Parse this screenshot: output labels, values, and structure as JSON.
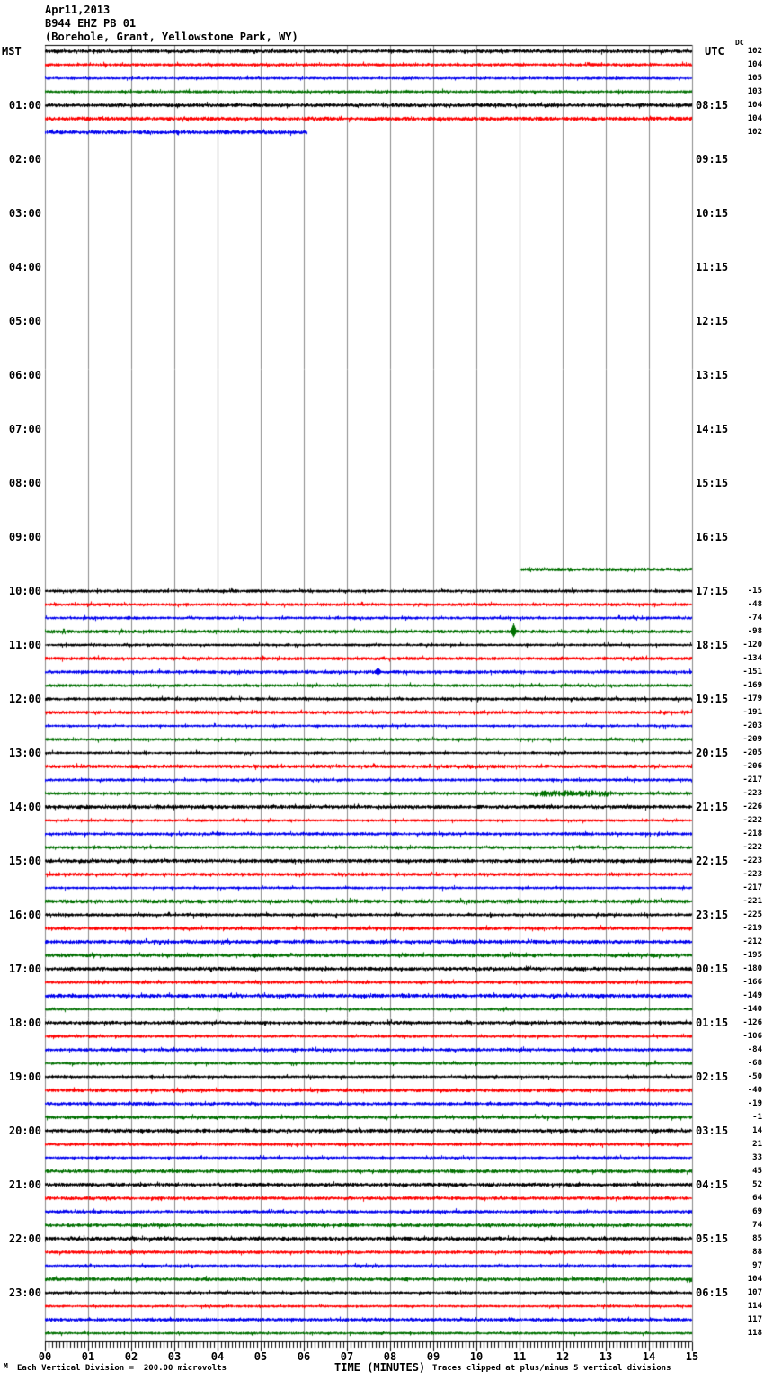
{
  "header": {
    "date": "Apr11,2013",
    "station": "B944 EHZ PB 01",
    "location": "(Borehole, Grant, Yellowstone Park, WY)"
  },
  "axes": {
    "left_label": "MST",
    "right_label": "UTC",
    "dc_header": "DC",
    "left_hours": [
      "01:00",
      "02:00",
      "03:00",
      "04:00",
      "05:00",
      "06:00",
      "07:00",
      "08:00",
      "09:00",
      "10:00",
      "11:00",
      "12:00",
      "13:00",
      "14:00",
      "15:00",
      "16:00",
      "17:00",
      "18:00",
      "19:00",
      "20:00",
      "21:00",
      "22:00",
      "23:00"
    ],
    "right_hours": [
      "08:15",
      "09:15",
      "10:15",
      "11:15",
      "12:15",
      "13:15",
      "14:15",
      "15:15",
      "16:15",
      "17:15",
      "18:15",
      "19:15",
      "20:15",
      "21:15",
      "22:15",
      "23:15",
      "00:15",
      "01:15",
      "02:15",
      "03:15",
      "04:15",
      "05:15",
      "06:15"
    ],
    "x_ticks": [
      "00",
      "01",
      "02",
      "03",
      "04",
      "05",
      "06",
      "07",
      "08",
      "09",
      "10",
      "11",
      "12",
      "13",
      "14",
      "15"
    ],
    "xlabel": "TIME (MINUTES)"
  },
  "footer": {
    "mark": "M",
    "scale_note": "Each Vertical Division =  200.00 microvolts",
    "clip_note": "Traces clipped at plus/minus 5 vertical divisions"
  },
  "chart_data": {
    "type": "line",
    "subtype": "seismogram-helicorder",
    "title": "B944 EHZ PB 01 (Borehole, Grant, Yellowstone Park, WY) Apr11,2013",
    "xlabel": "TIME (MINUTES)",
    "x_range_minutes": [
      0,
      15
    ],
    "minutes_per_row": 15,
    "microvolts_per_division": 200.0,
    "clip_divisions": 5,
    "trace_colors_cycle": [
      "#000000",
      "#ff0000",
      "#0000ee",
      "#007000"
    ],
    "grid_color": "#8a8a8a",
    "rows": [
      {
        "i": 0,
        "t": "00:00",
        "s": 0,
        "e": 15,
        "dc": 102
      },
      {
        "i": 1,
        "t": "00:15",
        "s": 0,
        "e": 15,
        "dc": 104
      },
      {
        "i": 2,
        "t": "00:30",
        "s": 0,
        "e": 15,
        "dc": 105
      },
      {
        "i": 3,
        "t": "00:45",
        "s": 0,
        "e": 15,
        "dc": 103
      },
      {
        "i": 4,
        "t": "01:00",
        "s": 0,
        "e": 15,
        "dc": 104
      },
      {
        "i": 5,
        "t": "01:15",
        "s": 0,
        "e": 15,
        "dc": 104
      },
      {
        "i": 6,
        "t": "01:30",
        "s": 0,
        "e": 6.08,
        "dc": 102
      },
      {
        "i": 39,
        "t": "09:45",
        "s": 11.0,
        "e": 15,
        "dc": null,
        "dy": -9
      },
      {
        "i": 40,
        "t": "10:00",
        "s": 0,
        "e": 15,
        "dc": -15
      },
      {
        "i": 41,
        "t": "10:15",
        "s": 0,
        "e": 15,
        "dc": -48
      },
      {
        "i": 42,
        "t": "10:30",
        "s": 0,
        "e": 15,
        "dc": -74
      },
      {
        "i": 43,
        "t": "10:45",
        "s": 0,
        "e": 15,
        "dc": -98
      },
      {
        "i": 44,
        "t": "11:00",
        "s": 0,
        "e": 15,
        "dc": -120
      },
      {
        "i": 45,
        "t": "11:15",
        "s": 0,
        "e": 15,
        "dc": -134
      },
      {
        "i": 46,
        "t": "11:30",
        "s": 0,
        "e": 15,
        "dc": -151
      },
      {
        "i": 47,
        "t": "11:45",
        "s": 0,
        "e": 15,
        "dc": -169
      },
      {
        "i": 48,
        "t": "12:00",
        "s": 0,
        "e": 15,
        "dc": -179
      },
      {
        "i": 49,
        "t": "12:15",
        "s": 0,
        "e": 15,
        "dc": -191
      },
      {
        "i": 50,
        "t": "12:30",
        "s": 0,
        "e": 15,
        "dc": -203
      },
      {
        "i": 51,
        "t": "12:45",
        "s": 0,
        "e": 15,
        "dc": -209
      },
      {
        "i": 52,
        "t": "13:00",
        "s": 0,
        "e": 15,
        "dc": -205
      },
      {
        "i": 53,
        "t": "13:15",
        "s": 0,
        "e": 15,
        "dc": -206
      },
      {
        "i": 54,
        "t": "13:30",
        "s": 0,
        "e": 15,
        "dc": -217
      },
      {
        "i": 55,
        "t": "13:45",
        "s": 0,
        "e": 15,
        "dc": -223
      },
      {
        "i": 56,
        "t": "14:00",
        "s": 0,
        "e": 15,
        "dc": -226
      },
      {
        "i": 57,
        "t": "14:15",
        "s": 0,
        "e": 15,
        "dc": -222
      },
      {
        "i": 58,
        "t": "14:30",
        "s": 0,
        "e": 15,
        "dc": -218
      },
      {
        "i": 59,
        "t": "14:45",
        "s": 0,
        "e": 15,
        "dc": -222
      },
      {
        "i": 60,
        "t": "15:00",
        "s": 0,
        "e": 15,
        "dc": -223
      },
      {
        "i": 61,
        "t": "15:15",
        "s": 0,
        "e": 15,
        "dc": -223
      },
      {
        "i": 62,
        "t": "15:30",
        "s": 0,
        "e": 15,
        "dc": -217
      },
      {
        "i": 63,
        "t": "15:45",
        "s": 0,
        "e": 15,
        "dc": -221
      },
      {
        "i": 64,
        "t": "16:00",
        "s": 0,
        "e": 15,
        "dc": -225
      },
      {
        "i": 65,
        "t": "16:15",
        "s": 0,
        "e": 15,
        "dc": -219
      },
      {
        "i": 66,
        "t": "16:30",
        "s": 0,
        "e": 15,
        "dc": -212
      },
      {
        "i": 67,
        "t": "16:45",
        "s": 0,
        "e": 15,
        "dc": -195
      },
      {
        "i": 68,
        "t": "17:00",
        "s": 0,
        "e": 15,
        "dc": -180
      },
      {
        "i": 69,
        "t": "17:15",
        "s": 0,
        "e": 15,
        "dc": -166
      },
      {
        "i": 70,
        "t": "17:30",
        "s": 0,
        "e": 15,
        "dc": -149
      },
      {
        "i": 71,
        "t": "17:45",
        "s": 0,
        "e": 15,
        "dc": -140
      },
      {
        "i": 72,
        "t": "18:00",
        "s": 0,
        "e": 15,
        "dc": -126
      },
      {
        "i": 73,
        "t": "18:15",
        "s": 0,
        "e": 15,
        "dc": -106
      },
      {
        "i": 74,
        "t": "18:30",
        "s": 0,
        "e": 15,
        "dc": -84
      },
      {
        "i": 75,
        "t": "18:45",
        "s": 0,
        "e": 15,
        "dc": -68
      },
      {
        "i": 76,
        "t": "19:00",
        "s": 0,
        "e": 15,
        "dc": -50
      },
      {
        "i": 77,
        "t": "19:15",
        "s": 0,
        "e": 15,
        "dc": -40
      },
      {
        "i": 78,
        "t": "19:30",
        "s": 0,
        "e": 15,
        "dc": -19
      },
      {
        "i": 79,
        "t": "19:45",
        "s": 0,
        "e": 15,
        "dc": -1
      },
      {
        "i": 80,
        "t": "20:00",
        "s": 0,
        "e": 15,
        "dc": 14
      },
      {
        "i": 81,
        "t": "20:15",
        "s": 0,
        "e": 15,
        "dc": 21
      },
      {
        "i": 82,
        "t": "20:30",
        "s": 0,
        "e": 15,
        "dc": 33
      },
      {
        "i": 83,
        "t": "20:45",
        "s": 0,
        "e": 15,
        "dc": 45
      },
      {
        "i": 84,
        "t": "21:00",
        "s": 0,
        "e": 15,
        "dc": 52
      },
      {
        "i": 85,
        "t": "21:15",
        "s": 0,
        "e": 15,
        "dc": 64
      },
      {
        "i": 86,
        "t": "21:30",
        "s": 0,
        "e": 15,
        "dc": 69
      },
      {
        "i": 87,
        "t": "21:45",
        "s": 0,
        "e": 15,
        "dc": 74
      },
      {
        "i": 88,
        "t": "22:00",
        "s": 0,
        "e": 15,
        "dc": 85
      },
      {
        "i": 89,
        "t": "22:15",
        "s": 0,
        "e": 15,
        "dc": 88
      },
      {
        "i": 90,
        "t": "22:30",
        "s": 0,
        "e": 15,
        "dc": 97
      },
      {
        "i": 91,
        "t": "22:45",
        "s": 0,
        "e": 15,
        "dc": 104
      },
      {
        "i": 92,
        "t": "23:00",
        "s": 0,
        "e": 15,
        "dc": 107
      },
      {
        "i": 93,
        "t": "23:15",
        "s": 0,
        "e": 15,
        "dc": 114
      },
      {
        "i": 94,
        "t": "23:30",
        "s": 0,
        "e": 15,
        "dc": 117
      },
      {
        "i": 95,
        "t": "23:45",
        "s": 0,
        "e": 15,
        "dc": 118
      }
    ],
    "events": [
      {
        "row": 42,
        "kind": "spike",
        "min": 1.94,
        "amp": 3,
        "w": 2
      },
      {
        "row": 43,
        "kind": "spike",
        "min": 10.85,
        "amp": 9,
        "w": 3
      },
      {
        "row": 46,
        "kind": "spike",
        "min": 7.71,
        "amp": 5,
        "w": 4
      },
      {
        "row": 55,
        "kind": "burst",
        "min": 11.3,
        "min_end": 13.06,
        "amp": 2.4
      }
    ]
  }
}
